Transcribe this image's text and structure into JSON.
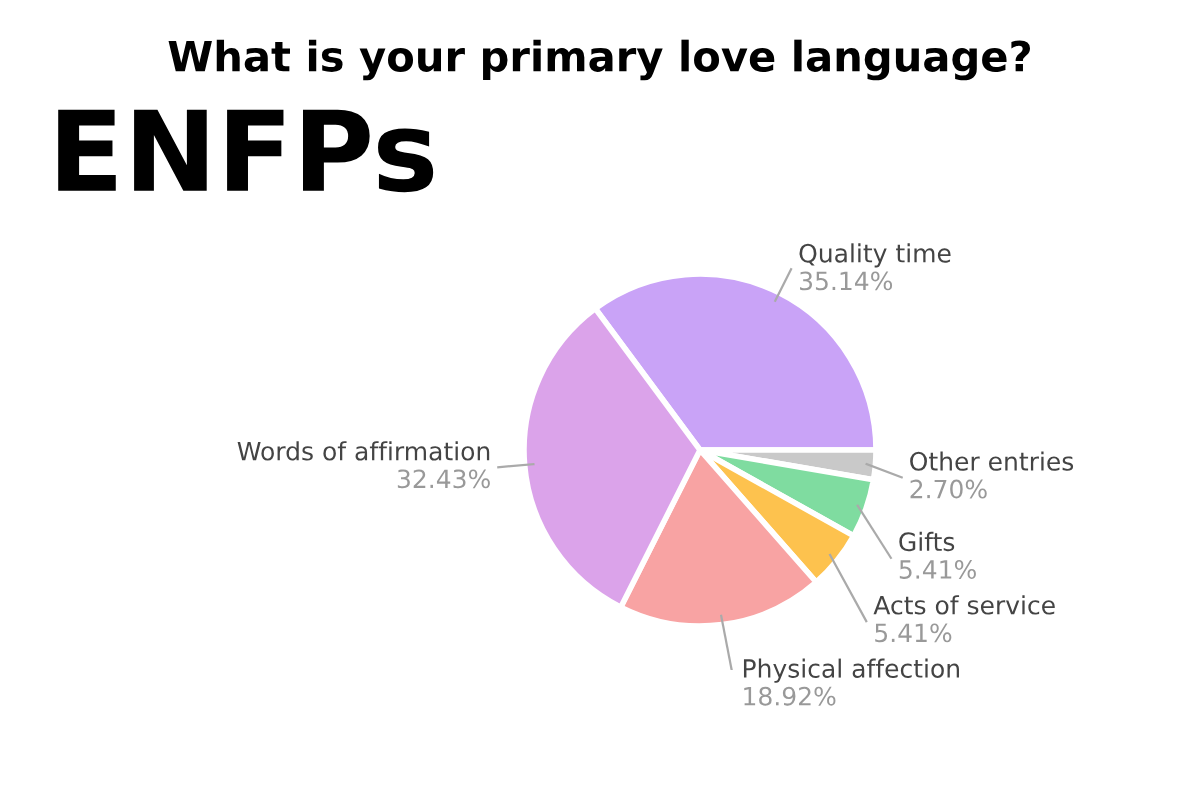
{
  "chart_data": {
    "type": "pie",
    "title": "What is your primary love language?",
    "subtitle": "ENFPs",
    "categories": [
      "Quality time",
      "Other entries",
      "Gifts",
      "Acts of service",
      "Physical affection",
      "Words of affirmation"
    ],
    "values": [
      35.14,
      2.7,
      5.41,
      5.41,
      18.92,
      32.43
    ],
    "value_labels": [
      "35.14%",
      "2.70%",
      "5.41%",
      "5.41%",
      "18.92%",
      "32.43%"
    ],
    "colors": [
      "#c9a3f7",
      "#c9c9c9",
      "#7fdca0",
      "#fdc24e",
      "#f8a3a3",
      "#dba3ea"
    ],
    "legend": false
  }
}
